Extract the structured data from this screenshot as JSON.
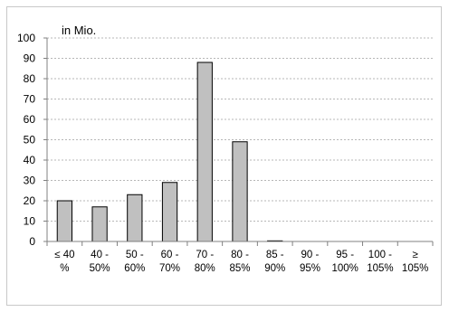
{
  "chart_data": {
    "type": "bar",
    "unit_label": "in Mio.",
    "categories": [
      [
        "≤ 40",
        "%"
      ],
      [
        "40 -",
        "50%"
      ],
      [
        "50 -",
        "60%"
      ],
      [
        "60 -",
        "70%"
      ],
      [
        "70 -",
        "80%"
      ],
      [
        "80 -",
        "85%"
      ],
      [
        "85 -",
        "90%"
      ],
      [
        "90 -",
        "95%"
      ],
      [
        "95 -",
        "100%"
      ],
      [
        "100 -",
        "105%"
      ],
      [
        "≥",
        "105%"
      ]
    ],
    "values": [
      20,
      17,
      23,
      29,
      88,
      49,
      0.3,
      0,
      0,
      0,
      0
    ],
    "ylim": [
      0,
      100
    ],
    "yticks": [
      "0",
      "10",
      "20",
      "30",
      "40",
      "50",
      "60",
      "70",
      "80",
      "90",
      "100"
    ],
    "grid": true,
    "colors": {
      "bar_fill": "#c0c0c0",
      "bar_stroke": "#000000",
      "grid": "#a0a0a0",
      "axis": "#808080"
    }
  }
}
